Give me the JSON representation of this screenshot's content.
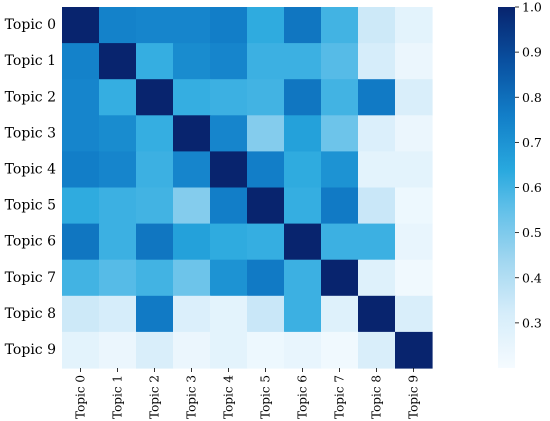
{
  "chart_data": {
    "type": "heatmap",
    "title": "",
    "xlabel": "",
    "ylabel": "",
    "row_labels": [
      "Topic 0",
      "Topic 1",
      "Topic 2",
      "Topic 3",
      "Topic 4",
      "Topic 5",
      "Topic 6",
      "Topic 7",
      "Topic 8",
      "Topic 9"
    ],
    "col_labels": [
      "Topic 0",
      "Topic 1",
      "Topic 2",
      "Topic 3",
      "Topic 4",
      "Topic 5",
      "Topic 6",
      "Topic 7",
      "Topic 8",
      "Topic 9"
    ],
    "values": [
      [
        1.0,
        0.75,
        0.74,
        0.74,
        0.76,
        0.63,
        0.78,
        0.6,
        0.34,
        0.27
      ],
      [
        0.75,
        1.0,
        0.62,
        0.72,
        0.74,
        0.61,
        0.61,
        0.57,
        0.32,
        0.24
      ],
      [
        0.74,
        0.62,
        1.0,
        0.62,
        0.61,
        0.6,
        0.78,
        0.6,
        0.77,
        0.31
      ],
      [
        0.74,
        0.72,
        0.62,
        1.0,
        0.74,
        0.49,
        0.66,
        0.53,
        0.3,
        0.24
      ],
      [
        0.76,
        0.74,
        0.61,
        0.74,
        1.0,
        0.76,
        0.63,
        0.7,
        0.27,
        0.27
      ],
      [
        0.63,
        0.61,
        0.6,
        0.49,
        0.76,
        1.0,
        0.62,
        0.77,
        0.35,
        0.23
      ],
      [
        0.78,
        0.61,
        0.78,
        0.66,
        0.63,
        0.62,
        1.0,
        0.61,
        0.61,
        0.25
      ],
      [
        0.6,
        0.57,
        0.6,
        0.53,
        0.7,
        0.77,
        0.61,
        1.0,
        0.29,
        0.22
      ],
      [
        0.34,
        0.32,
        0.77,
        0.3,
        0.27,
        0.35,
        0.61,
        0.29,
        1.0,
        0.31
      ],
      [
        0.27,
        0.24,
        0.31,
        0.24,
        0.27,
        0.23,
        0.25,
        0.22,
        0.31,
        1.0
      ]
    ],
    "colormap": "Blues",
    "color_low": "#f7fbff",
    "color_high": "#08306b",
    "colorbar": {
      "min": 0.2,
      "max": 1.0,
      "tick_values": [
        0.3,
        0.4,
        0.5,
        0.6,
        0.7,
        0.8,
        0.9,
        1.0
      ],
      "tick_labels": [
        "0.3",
        "0.4",
        "0.5",
        "0.6",
        "0.7",
        "0.8",
        "0.9",
        "1.0"
      ]
    },
    "grid": false,
    "legend": "colorbar-right"
  }
}
